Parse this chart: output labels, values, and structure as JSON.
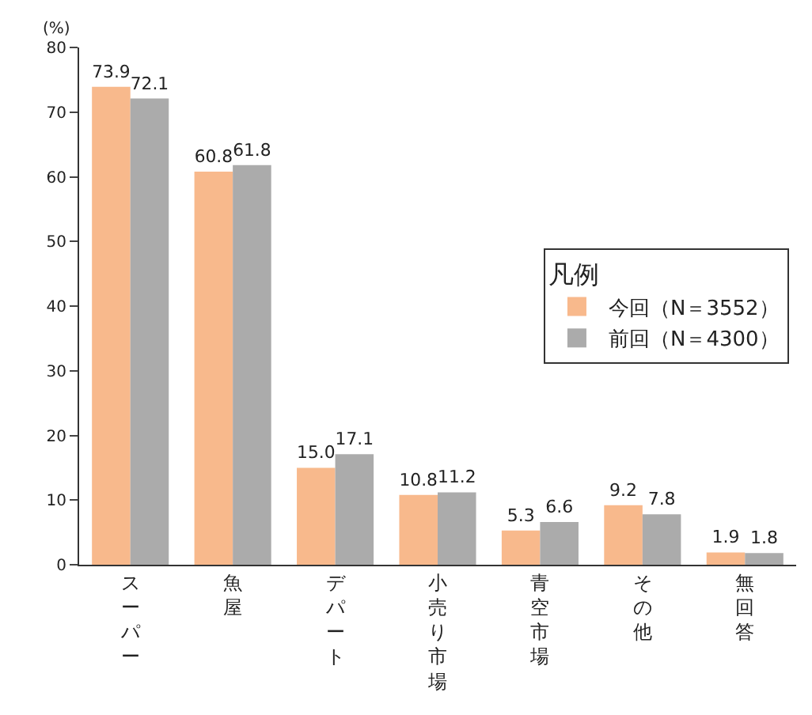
{
  "chart_data": {
    "type": "bar",
    "ylabel": "(%)",
    "legend_title": "凡例",
    "legend": "right",
    "categories": [
      "スーパー",
      "魚屋",
      "デパート",
      "小売り市場",
      "青空市場",
      "その他",
      "無回答"
    ],
    "series": [
      {
        "name": "今回（N＝3552）",
        "color": "#f8b98c",
        "values": [
          73.9,
          60.8,
          15.0,
          10.8,
          5.3,
          9.2,
          1.9
        ],
        "value_labels": [
          "73.9",
          "60.8",
          "15.0",
          "10.8",
          "5.3",
          "9.2",
          "1.9"
        ]
      },
      {
        "name": "前回（N＝4300）",
        "color": "#ababab",
        "values": [
          72.1,
          61.8,
          17.1,
          11.2,
          6.6,
          7.8,
          1.8
        ],
        "value_labels": [
          "72.1",
          "61.8",
          "17.1",
          "11.2",
          "6.6",
          "7.8",
          "1.8"
        ]
      }
    ],
    "ylim": [
      0,
      80
    ],
    "yticks": [
      0,
      10,
      20,
      30,
      40,
      50,
      60,
      70,
      80
    ]
  }
}
